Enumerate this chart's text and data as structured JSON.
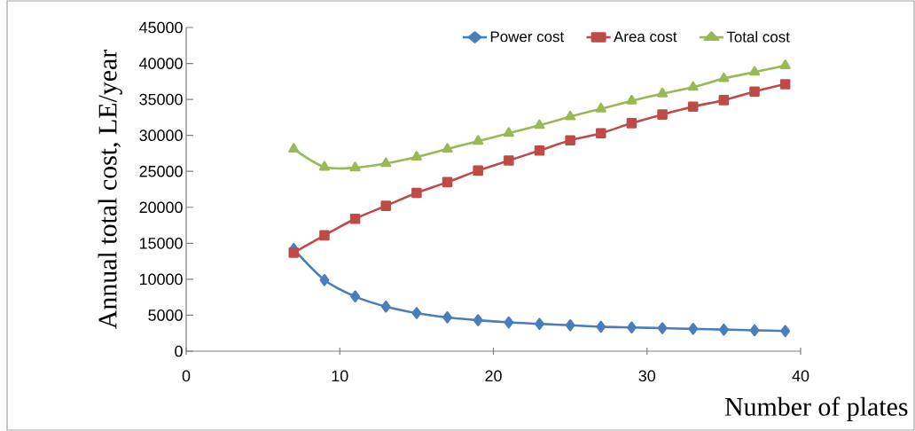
{
  "chart_data": {
    "type": "line",
    "xlabel": "Number of plates",
    "ylabel": "Annual total cost, LE/year",
    "x": [
      7,
      9,
      11,
      13,
      15,
      17,
      19,
      21,
      23,
      25,
      27,
      29,
      31,
      33,
      35,
      37,
      39
    ],
    "xlim": [
      0,
      40
    ],
    "xticks": [
      0,
      10,
      20,
      30,
      40
    ],
    "ylim": [
      0,
      45000
    ],
    "yticks": [
      0,
      5000,
      10000,
      15000,
      20000,
      25000,
      30000,
      35000,
      40000,
      45000
    ],
    "grid": false,
    "legend": "top right",
    "series": [
      {
        "name": "Power cost",
        "color": "#4a7ebb",
        "marker": "diamond",
        "values": [
          14200,
          9900,
          7600,
          6200,
          5300,
          4700,
          4300,
          4000,
          3800,
          3600,
          3400,
          3300,
          3200,
          3100,
          3000,
          2900,
          2800
        ]
      },
      {
        "name": "Area cost",
        "color": "#be4b48",
        "marker": "square",
        "values": [
          13700,
          16100,
          18400,
          20200,
          22000,
          23500,
          25100,
          26500,
          27900,
          29300,
          30300,
          31700,
          32900,
          34000,
          34900,
          36100,
          37100
        ]
      },
      {
        "name": "Total cost",
        "color": "#98b954",
        "marker": "triangle",
        "values": [
          28100,
          25600,
          25500,
          26100,
          27000,
          28100,
          29200,
          30300,
          31400,
          32600,
          33700,
          34800,
          35800,
          36700,
          37900,
          38800,
          39700
        ]
      }
    ]
  }
}
